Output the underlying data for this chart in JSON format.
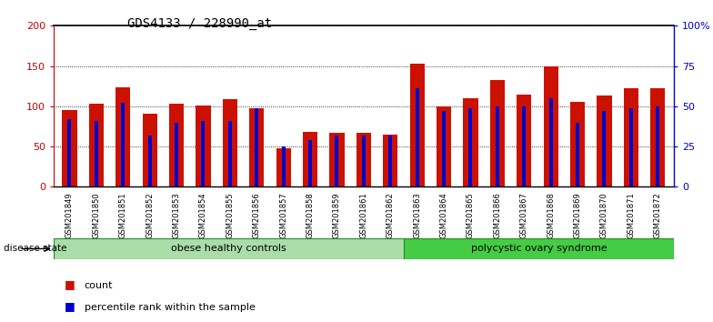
{
  "title": "GDS4133 / 228990_at",
  "samples": [
    "GSM201849",
    "GSM201850",
    "GSM201851",
    "GSM201852",
    "GSM201853",
    "GSM201854",
    "GSM201855",
    "GSM201856",
    "GSM201857",
    "GSM201858",
    "GSM201859",
    "GSM201861",
    "GSM201862",
    "GSM201863",
    "GSM201864",
    "GSM201865",
    "GSM201866",
    "GSM201867",
    "GSM201868",
    "GSM201869",
    "GSM201870",
    "GSM201871",
    "GSM201872"
  ],
  "count_values": [
    95,
    103,
    123,
    91,
    103,
    101,
    109,
    98,
    48,
    68,
    67,
    67,
    65,
    153,
    100,
    110,
    133,
    115,
    149,
    105,
    113,
    122,
    122
  ],
  "percentile_values": [
    42,
    41,
    52,
    32,
    40,
    41,
    41,
    49,
    25,
    29,
    32,
    32,
    32,
    61,
    47,
    49,
    50,
    50,
    55,
    40,
    47,
    49,
    50
  ],
  "groups": [
    {
      "label": "obese healthy controls",
      "start": 0,
      "end": 13,
      "color": "#aaddaa"
    },
    {
      "label": "polycystic ovary syndrome",
      "start": 13,
      "end": 23,
      "color": "#44cc44"
    }
  ],
  "ylim_left": [
    0,
    200
  ],
  "ylim_right": [
    0,
    100
  ],
  "left_ticks": [
    0,
    50,
    100,
    150,
    200
  ],
  "right_ticks": [
    0,
    25,
    50,
    75,
    100
  ],
  "right_tick_labels": [
    "0",
    "25",
    "50",
    "75",
    "100%"
  ],
  "left_color": "#CC0000",
  "right_color": "#0000CC",
  "bar_color_red": "#CC1100",
  "bar_color_blue": "#0000CC",
  "bg_color": "#ffffff",
  "plot_bg": "#ffffff",
  "legend_count_label": "count",
  "legend_percentile_label": "percentile rank within the sample",
  "disease_state_label": "disease state",
  "title_fontsize": 10
}
